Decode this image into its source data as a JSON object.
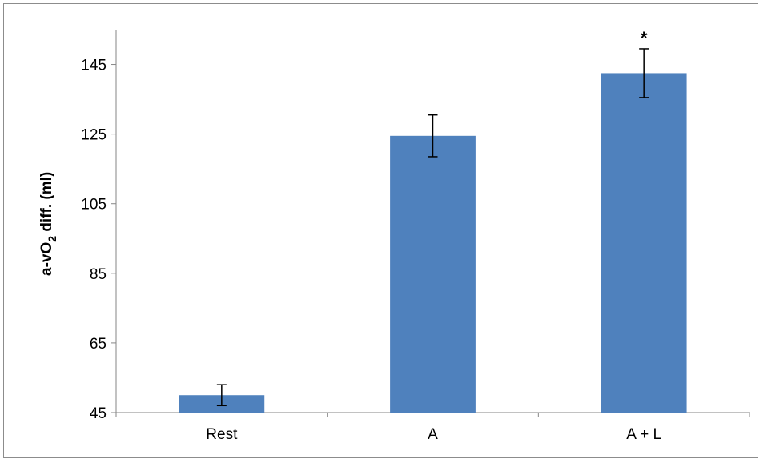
{
  "chart_data": {
    "type": "bar",
    "categories": [
      "Rest",
      "A",
      "A + L"
    ],
    "values": [
      50,
      124.5,
      142.5
    ],
    "error": [
      3,
      6,
      7
    ],
    "annotations": [
      "",
      "",
      "*"
    ],
    "ylabel_main": "a-vO",
    "ylabel_sub": "2",
    "ylabel_rest": " diff. (ml)",
    "ylim": [
      45,
      155
    ],
    "yticks": [
      45,
      65,
      85,
      105,
      125,
      145
    ],
    "bar_color": "#4f81bd",
    "grid": false
  }
}
